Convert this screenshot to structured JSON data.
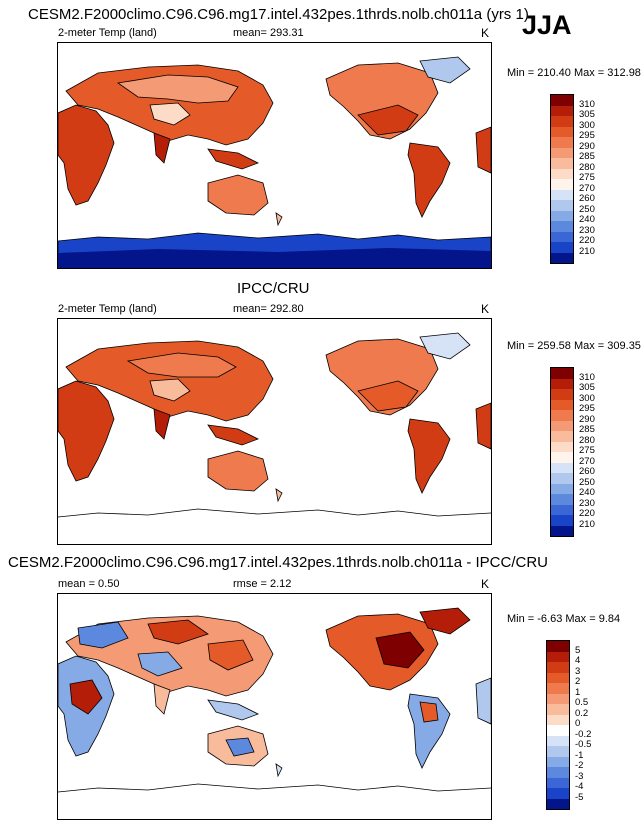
{
  "season": "JJA",
  "panels": [
    {
      "title": "CESM2.F2000climo.C96.C96.mg17.intel.432pes.1thrds.nolb.ch011a (yrs 1)",
      "left_label": "2-meter Temp (land)",
      "center_label": "mean= 293.31",
      "units": "K",
      "minmax": "Min = 210.40 Max = 312.98",
      "colorbar": {
        "labels": [
          "310",
          "305",
          "300",
          "295",
          "290",
          "285",
          "280",
          "275",
          "270",
          "260",
          "250",
          "240",
          "230",
          "220",
          "210"
        ],
        "colors": [
          "#7f0000",
          "#b41e08",
          "#d23c14",
          "#e45a28",
          "#ee7a4e",
          "#f49a74",
          "#f8bb9c",
          "#fcdcc6",
          "#fff4ec",
          "#d6e2f6",
          "#b0c8ee",
          "#86aae6",
          "#5c88de",
          "#3a66d6",
          "#1a44c8",
          "#04148a"
        ]
      }
    },
    {
      "title": "IPCC/CRU",
      "left_label": "2-meter Temp (land)",
      "center_label": "mean= 292.80",
      "units": "K",
      "minmax": "Min = 259.58 Max = 309.35",
      "colorbar": {
        "labels": [
          "310",
          "305",
          "300",
          "295",
          "290",
          "285",
          "280",
          "275",
          "270",
          "260",
          "250",
          "240",
          "230",
          "220",
          "210"
        ],
        "colors": [
          "#7f0000",
          "#b41e08",
          "#d23c14",
          "#e45a28",
          "#ee7a4e",
          "#f49a74",
          "#f8bb9c",
          "#fcdcc6",
          "#fff4ec",
          "#d6e2f6",
          "#b0c8ee",
          "#86aae6",
          "#5c88de",
          "#3a66d6",
          "#1a44c8",
          "#04148a"
        ]
      }
    },
    {
      "title": "CESM2.F2000climo.C96.C96.mg17.intel.432pes.1thrds.nolb.ch011a - IPCC/CRU",
      "left_label": "mean =   0.50",
      "center_label": "rmse =   2.12",
      "units": "K",
      "minmax": "Min =  -6.63 Max =  9.84",
      "colorbar": {
        "labels": [
          "5",
          "4",
          "3",
          "2",
          "1",
          "0.5",
          "0.2",
          "0",
          "-0.2",
          "-0.5",
          "-1",
          "-2",
          "-3",
          "-4",
          "-5"
        ],
        "colors": [
          "#7f0000",
          "#b41e08",
          "#d23c14",
          "#e45a28",
          "#ee7a4e",
          "#f49a74",
          "#f8bb9c",
          "#fcdcc6",
          "#ffffff",
          "#d6e2f6",
          "#b0c8ee",
          "#86aae6",
          "#5c88de",
          "#3a66d6",
          "#1a44c8",
          "#04148a"
        ]
      }
    }
  ]
}
